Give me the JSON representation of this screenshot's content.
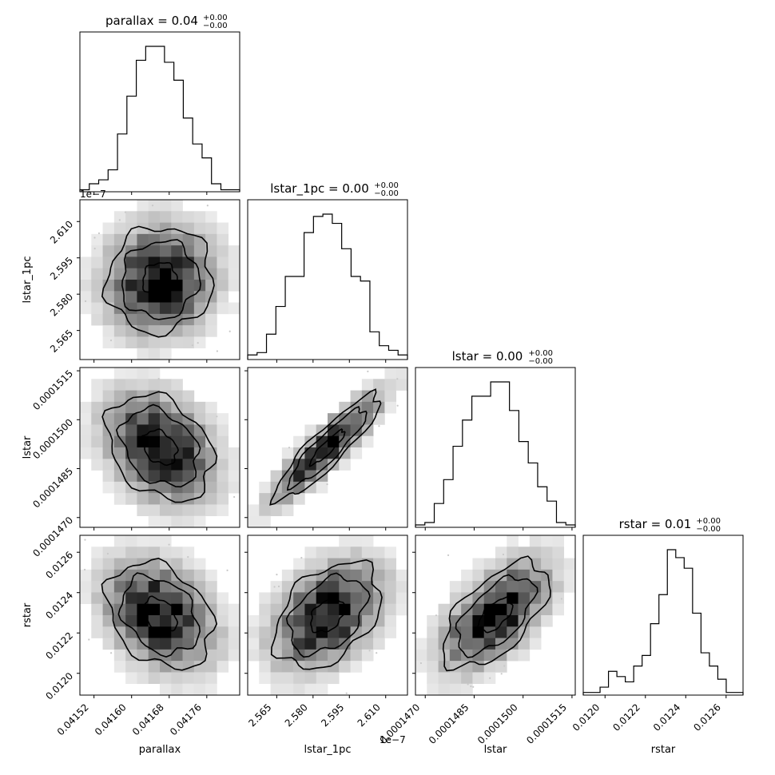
{
  "chart_data": {
    "type": "corner",
    "parameters": [
      "parallax",
      "lstar_1pc",
      "lstar",
      "rstar"
    ],
    "titles": {
      "parallax": {
        "text": "parallax = 0.04",
        "sup": "+0.00",
        "sub": "−0.00"
      },
      "lstar_1pc": {
        "text": "lstar_1pc = 0.00",
        "sup": "+0.00",
        "sub": "−0.00"
      },
      "lstar": {
        "text": "lstar = 0.00",
        "sup": "+0.00",
        "sub": "−0.00"
      },
      "rstar": {
        "text": "rstar = 0.01",
        "sup": "+0.00",
        "sub": "−0.00"
      }
    },
    "axis_labels": {
      "x": [
        "parallax",
        "lstar_1pc",
        "lstar",
        "rstar"
      ],
      "y": [
        "lstar_1pc",
        "lstar",
        "rstar"
      ]
    },
    "offset_texts": {
      "lstar_1pc_y": "1e−7",
      "lstar_1pc_x": "1e−7"
    },
    "ranges": {
      "parallax": [
        0.04149,
        0.04183
      ],
      "lstar_1pc": [
        2.553,
        2.619
      ],
      "lstar": [
        0.0001467,
        0.0001516
      ],
      "rstar": [
        0.011892,
        0.012684
      ]
    },
    "ticks": {
      "parallax": {
        "values": [
          0.04152,
          0.0416,
          0.04168,
          0.04176
        ],
        "labels": [
          "0.04152",
          "0.04160",
          "0.04168",
          "0.04176"
        ]
      },
      "lstar_1pc": {
        "values": [
          2.565,
          2.58,
          2.595,
          2.61
        ],
        "labels": [
          "2.565",
          "2.580",
          "2.595",
          "2.610"
        ]
      },
      "lstar": {
        "values": [
          0.000147,
          0.0001485,
          0.00015,
          0.0001515
        ],
        "labels": [
          "0.0001470",
          "0.0001485",
          "0.0001500",
          "0.0001515"
        ]
      },
      "rstar": {
        "values": [
          0.012,
          0.0122,
          0.0124,
          0.0126
        ],
        "labels": [
          "0.0120",
          "0.0122",
          "0.0124",
          "0.0126"
        ]
      }
    },
    "histograms": {
      "parallax": [
        1,
        4,
        6,
        11,
        29,
        48,
        66,
        73,
        73,
        65,
        56,
        37,
        24,
        17,
        4,
        1,
        1
      ],
      "lstar_1pc": [
        2,
        3,
        11,
        23,
        36,
        36,
        55,
        62,
        63,
        59,
        48,
        36,
        34,
        12,
        6,
        4,
        2
      ],
      "lstar": [
        1,
        2,
        10,
        20,
        34,
        45,
        55,
        55,
        61,
        61,
        49,
        36,
        27,
        17,
        11,
        2,
        1
      ],
      "rstar": [
        1,
        1,
        3,
        9,
        7,
        5,
        11,
        15,
        27,
        38,
        55,
        52,
        48,
        31,
        16,
        11,
        6,
        1,
        1
      ]
    },
    "correlations": {
      "lstar_1pc|parallax": 0.05,
      "lstar|parallax": -0.3,
      "lstar|lstar_1pc": 0.9,
      "rstar|parallax": -0.3,
      "rstar|lstar_1pc": 0.4,
      "rstar|lstar": 0.6
    },
    "contour_levels": [
      "39.3%",
      "86.5%",
      "98.9%"
    ]
  }
}
